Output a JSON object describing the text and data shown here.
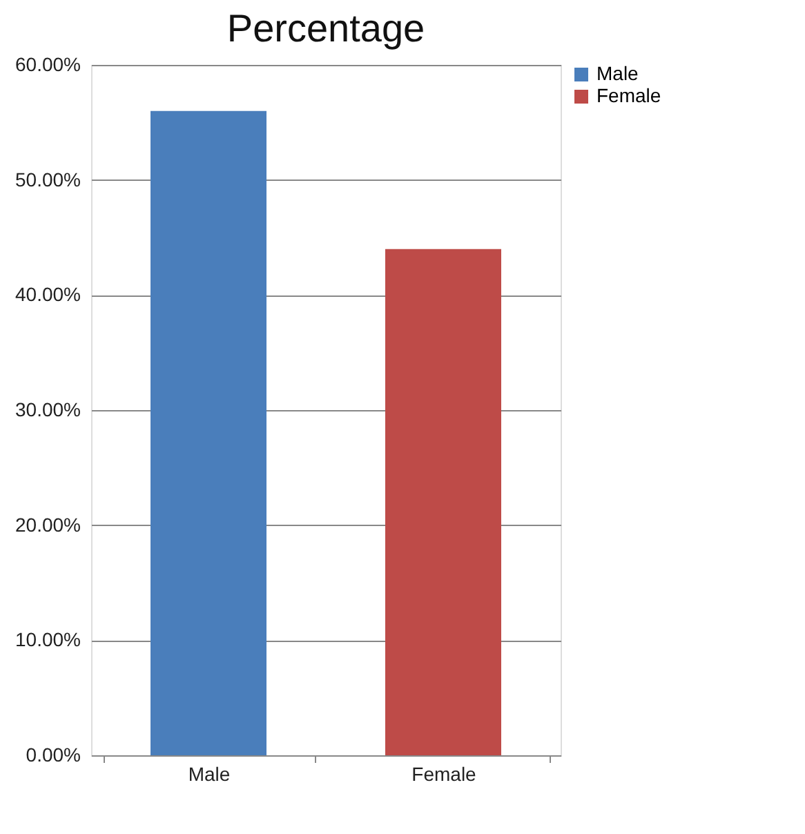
{
  "chart_data": {
    "type": "bar",
    "title": "Percentage",
    "categories": [
      "Male",
      "Female"
    ],
    "series": [
      {
        "name": "Male",
        "color": "#4a7ebb",
        "values": [
          56,
          null
        ]
      },
      {
        "name": "Female",
        "color": "#be4b48",
        "values": [
          null,
          44
        ]
      }
    ],
    "ylim": [
      0,
      60
    ],
    "yticks": [
      {
        "value": 0,
        "label": "0.00%"
      },
      {
        "value": 10,
        "label": "10.00%"
      },
      {
        "value": 20,
        "label": "20.00%"
      },
      {
        "value": 30,
        "label": "30.00%"
      },
      {
        "value": 40,
        "label": "40.00%"
      },
      {
        "value": 50,
        "label": "50.00%"
      },
      {
        "value": 60,
        "label": "60.00%"
      }
    ],
    "grid": "y",
    "legend": "right"
  }
}
